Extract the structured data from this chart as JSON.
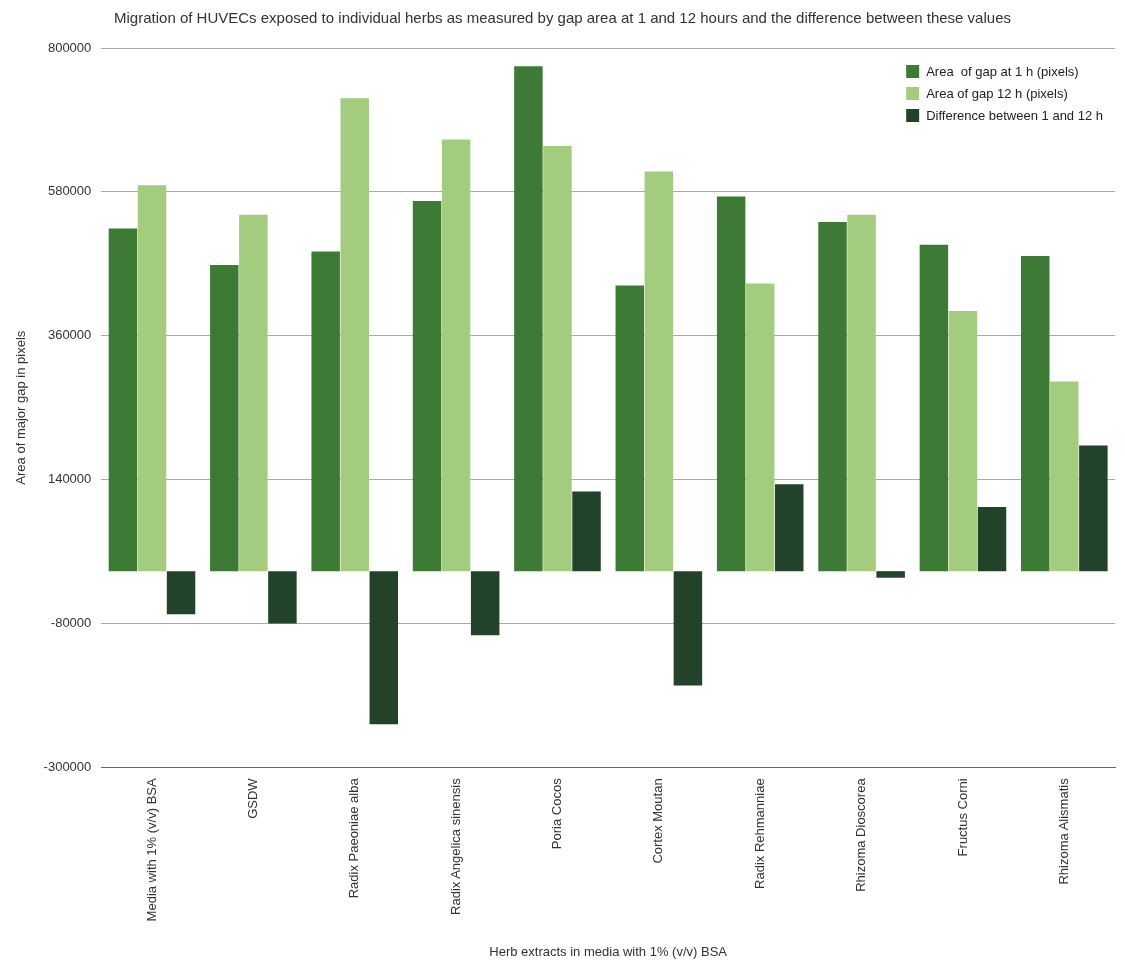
{
  "chart_data": {
    "type": "bar",
    "title": "Migration of HUVECs exposed to individual herbs as measured by gap area at 1 and 12 hours and the difference between these values",
    "xlabel": "Herb extracts in media with 1% (v/v) BSA",
    "ylabel": "Area of major gap in pixels",
    "categories": [
      "Media with 1% (v/v) BSA",
      "GSDW",
      "Radix Paeoniae alba",
      "Radix Angelica sinensis",
      "Poria Cocos",
      "Cortex Moutan",
      "Radix Rehmanniae",
      "Rhizoma Dioscorea",
      "Fructus Corni",
      "Rhizoma Alismatis"
    ],
    "series": [
      {
        "name": "Area  of gap at 1 h (pixels)",
        "color": "#3d7a35",
        "values": [
          524000,
          468000,
          489000,
          566000,
          772000,
          437000,
          573000,
          534000,
          499000,
          482000
        ]
      },
      {
        "name": "Area of gap 12 h (pixels)",
        "color": "#a3cc7f",
        "values": [
          590000,
          545000,
          723000,
          660000,
          650000,
          611000,
          440000,
          545000,
          398000,
          290000
        ]
      },
      {
        "name": "Difference between 1 and 12 h",
        "color": "#22422a",
        "values": [
          -66000,
          -80000,
          -234000,
          -98000,
          122000,
          -175000,
          133000,
          -10000,
          98000,
          192000
        ]
      }
    ],
    "ylim": [
      -300000,
      800000
    ],
    "yticks": [
      -300000,
      -80000,
      140000,
      360000,
      580000,
      800000
    ],
    "grid": "y",
    "legend": "top right"
  }
}
